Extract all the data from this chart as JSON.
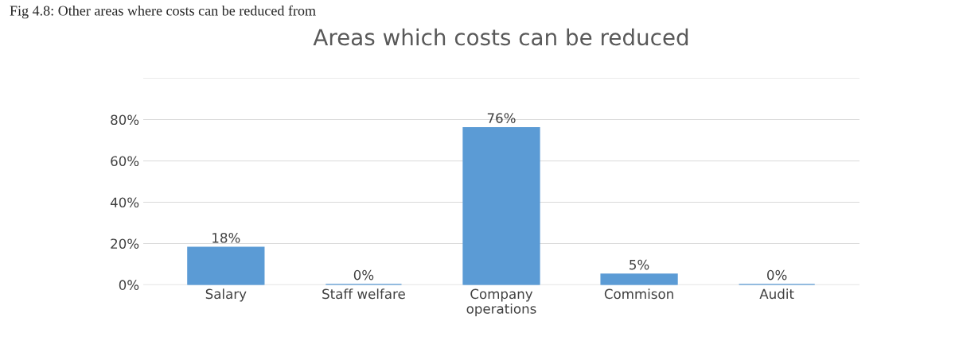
{
  "chart_data": {
    "type": "bar",
    "title": "Areas which costs can be reduced",
    "annotations": [
      "Fig 4.8: Other areas where costs can be reduced from"
    ],
    "categories": [
      "Salary",
      "Staff welfare",
      "Company\noperations",
      "Commison",
      "Audit"
    ],
    "values": [
      18,
      0,
      76,
      5,
      0
    ],
    "value_labels": [
      "18%",
      "0%",
      "76%",
      "5%",
      "0%"
    ],
    "color": "#5b9bd5",
    "ylim": [
      0,
      100
    ],
    "yticks": [
      {
        "value": 0,
        "label": "0%"
      },
      {
        "value": 20,
        "label": "20%"
      },
      {
        "value": 40,
        "label": "40%"
      },
      {
        "value": 60,
        "label": "60%"
      },
      {
        "value": 80,
        "label": "80%"
      },
      {
        "value": 100,
        "label": null
      }
    ],
    "grid": "y"
  }
}
